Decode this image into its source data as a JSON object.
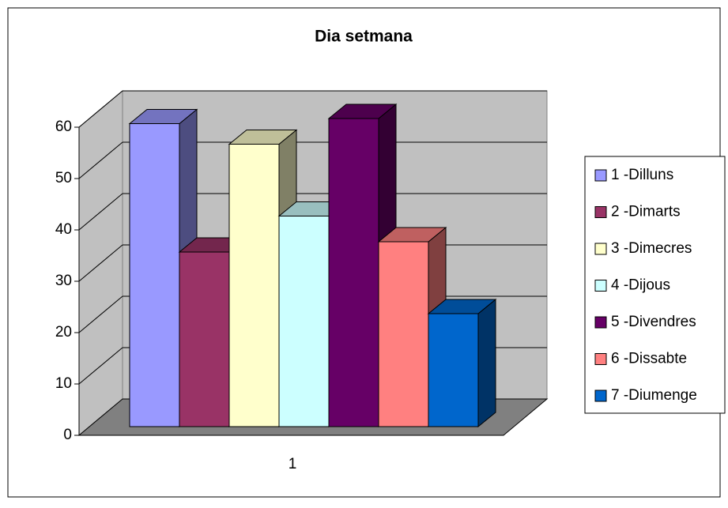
{
  "chart_data": {
    "type": "bar3d",
    "title": "Dia setmana",
    "categories": [
      "1"
    ],
    "series": [
      {
        "name": "1 -Dilluns",
        "color": "#9999ff",
        "values": [
          59
        ]
      },
      {
        "name": "2 -Dimarts",
        "color": "#993366",
        "values": [
          34
        ]
      },
      {
        "name": "3 -Dimecres",
        "color": "#ffffcc",
        "values": [
          55
        ]
      },
      {
        "name": "4 -Dijous",
        "color": "#ccffff",
        "values": [
          41
        ]
      },
      {
        "name": "5 -Divendres",
        "color": "#660066",
        "values": [
          60
        ]
      },
      {
        "name": "6 -Dissabte",
        "color": "#ff8080",
        "values": [
          36
        ]
      },
      {
        "name": "7 -Diumenge",
        "color": "#0066cc",
        "values": [
          22
        ]
      }
    ],
    "ylim": [
      0,
      60
    ],
    "yticks": [
      0,
      10,
      20,
      30,
      40,
      50,
      60
    ],
    "grid": true,
    "legend": "right"
  }
}
